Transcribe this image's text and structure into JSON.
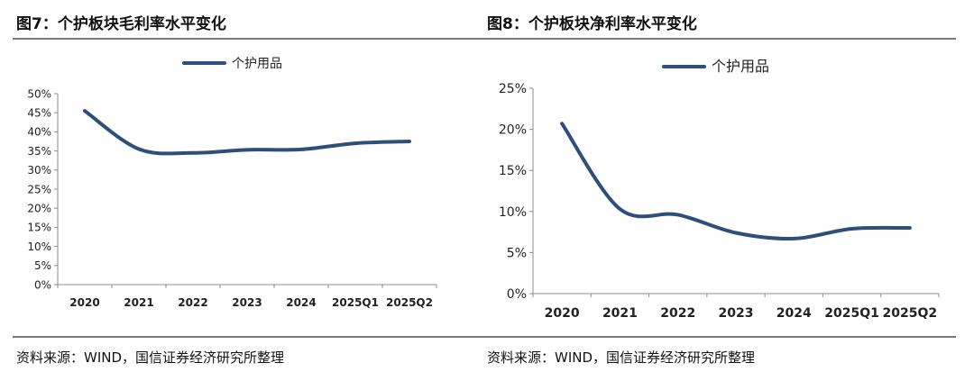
{
  "charts": [
    {
      "caption": "图7：个护板块毛利率水平变化",
      "source": "资料来源：WIND，国信证券经济研究所整理",
      "chart_data": {
        "type": "line",
        "categories": [
          "2020",
          "2021",
          "2022",
          "2023",
          "2024",
          "2025Q1",
          "2025Q2"
        ],
        "series": [
          {
            "name": "个护用品",
            "values": [
              45.5,
              35.5,
              34.5,
              35.3,
              35.4,
              37.0,
              37.5
            ],
            "color": "#2f4f7a"
          }
        ],
        "ylim": [
          0,
          50
        ],
        "yticks": [
          "0%",
          "5%",
          "10%",
          "15%",
          "20%",
          "25%",
          "30%",
          "35%",
          "40%",
          "45%",
          "50%"
        ],
        "legend": "top-center",
        "grid": false
      }
    },
    {
      "caption": "图8：个护板块净利率水平变化",
      "source": "资料来源：WIND，国信证券经济研究所整理",
      "chart_data": {
        "type": "line",
        "categories": [
          "2020",
          "2021",
          "2022",
          "2023",
          "2024",
          "2025Q1",
          "2025Q2"
        ],
        "series": [
          {
            "name": "个护用品",
            "values": [
              20.7,
              10.3,
              9.6,
              7.4,
              6.7,
              7.9,
              8.0
            ],
            "color": "#2f4f7a"
          }
        ],
        "ylim": [
          0,
          25
        ],
        "yticks": [
          "0%",
          "5%",
          "10%",
          "15%",
          "20%",
          "25%"
        ],
        "legend": "top-center",
        "grid": false
      }
    }
  ]
}
